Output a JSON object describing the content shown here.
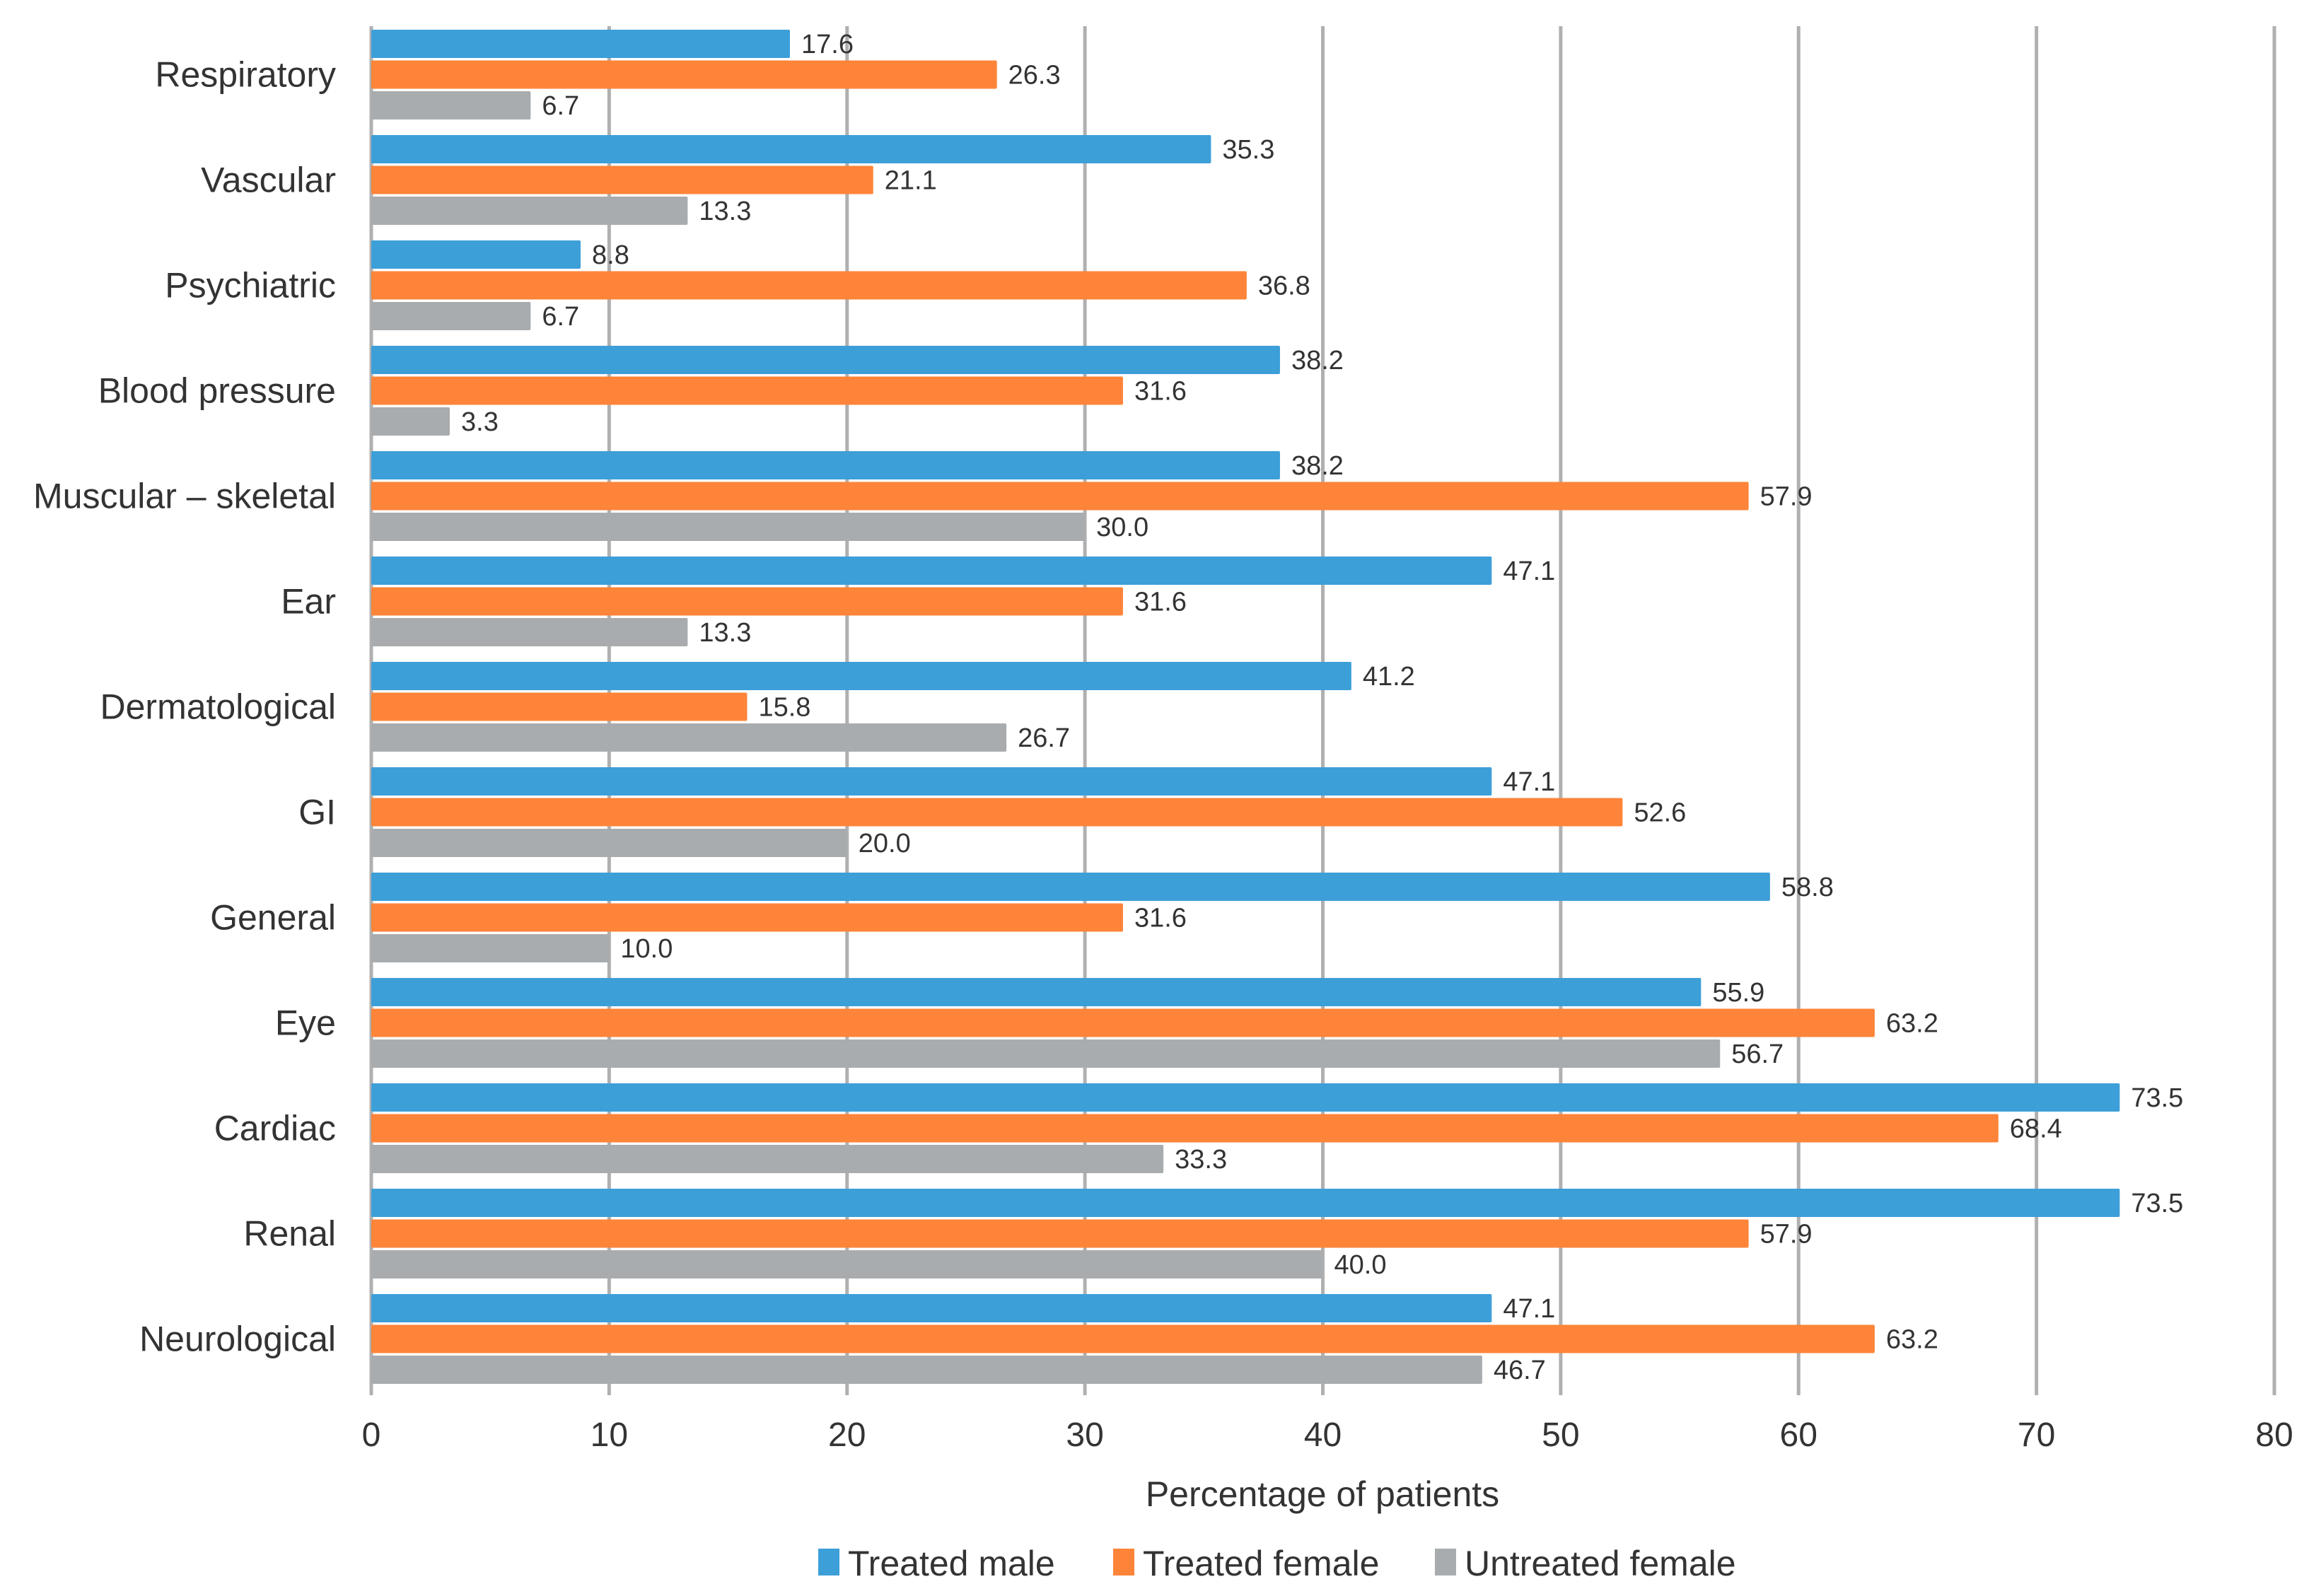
{
  "chart_data": {
    "type": "bar",
    "orientation": "horizontal",
    "title": "",
    "xlabel": "Percentage of patients",
    "ylabel": "",
    "xlim": [
      0,
      80
    ],
    "xticks": [
      "0",
      "10",
      "20",
      "30",
      "40",
      "50",
      "60",
      "70",
      "80"
    ],
    "grid": "vertical",
    "legend_position": "bottom",
    "categories": [
      "Respiratory",
      "Vascular",
      "Psychiatric",
      "Blood pressure",
      "Muscular – skeletal",
      "Ear",
      "Dermatological",
      "GI",
      "General",
      "Eye",
      "Cardiac",
      "Renal",
      "Neurological"
    ],
    "series": [
      {
        "name": "Treated male",
        "color": "#3c9fd8",
        "values": [
          17.6,
          35.3,
          8.8,
          38.2,
          38.2,
          47.1,
          41.2,
          47.1,
          58.8,
          55.9,
          73.5,
          73.5,
          47.1
        ],
        "labels": [
          "17.6",
          "35.3",
          "8.8",
          "38.2",
          "38.2",
          "47.1",
          "41.2",
          "47.1",
          "58.8",
          "55.9",
          "73.5",
          "73.5",
          "47.1"
        ]
      },
      {
        "name": "Treated female",
        "color": "#fe8439",
        "values": [
          26.3,
          21.1,
          36.8,
          31.6,
          57.9,
          31.6,
          15.8,
          52.6,
          31.6,
          63.2,
          68.4,
          57.9,
          63.2
        ],
        "labels": [
          "26.3",
          "21.1",
          "36.8",
          "31.6",
          "57.9",
          "31.6",
          "15.8",
          "52.6",
          "31.6",
          "63.2",
          "68.4",
          "57.9",
          "63.2"
        ]
      },
      {
        "name": "Untreated female",
        "color": "#a9acae",
        "values": [
          6.7,
          13.3,
          6.7,
          3.3,
          30.0,
          13.3,
          26.7,
          20.0,
          10.0,
          56.7,
          33.3,
          40.0,
          46.7
        ],
        "labels": [
          "6.7",
          "13.3",
          "6.7",
          "3.3",
          "30.0",
          "13.3",
          "26.7",
          "20.0",
          "10.0",
          "56.7",
          "33.3",
          "40.0",
          "46.7"
        ]
      }
    ]
  }
}
